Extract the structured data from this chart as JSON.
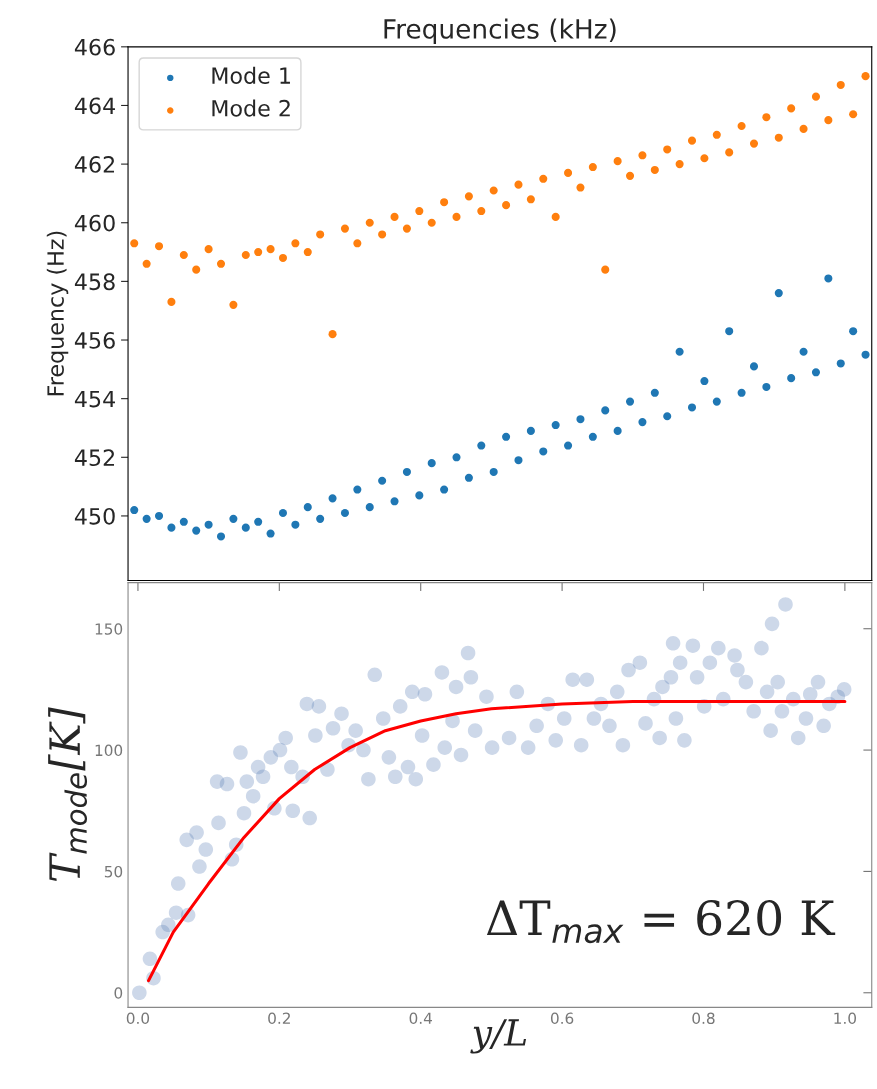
{
  "chart_data": [
    {
      "type": "scatter",
      "title": "Frequencies (kHz)",
      "ylabel": "Frequency (Hz)",
      "categories": [
        null,
        null,
        null,
        null,
        null,
        null,
        null,
        null,
        null,
        null,
        null,
        null,
        null,
        null,
        null,
        null,
        null,
        null,
        null,
        null,
        null,
        null,
        null,
        null,
        null,
        null,
        null,
        null,
        null,
        null,
        null,
        null,
        null,
        null,
        null,
        null,
        null,
        null,
        null,
        null,
        null,
        null,
        null,
        null,
        null,
        null,
        null,
        null,
        null,
        null,
        null,
        null,
        null,
        null,
        null,
        null,
        null,
        null,
        null,
        null
      ],
      "series": [
        {
          "name": "Mode 1",
          "color": "#1f77b4",
          "values": [
            450.2,
            449.9,
            450.0,
            449.6,
            449.8,
            449.5,
            449.7,
            449.3,
            449.9,
            449.6,
            449.8,
            449.4,
            450.1,
            449.7,
            450.3,
            449.9,
            450.6,
            450.1,
            450.9,
            450.3,
            451.2,
            450.5,
            451.5,
            450.7,
            451.8,
            450.9,
            452.0,
            451.3,
            452.4,
            451.5,
            452.7,
            451.9,
            452.9,
            452.2,
            453.1,
            452.4,
            453.3,
            452.7,
            453.6,
            452.9,
            453.9,
            453.2,
            454.2,
            453.4,
            455.6,
            453.7,
            454.6,
            453.9,
            456.3,
            454.2,
            455.1,
            454.4,
            457.6,
            454.7,
            455.6,
            454.9,
            458.1,
            455.2,
            456.3,
            455.5
          ]
        },
        {
          "name": "Mode 2",
          "color": "#ff7f0e",
          "values": [
            459.3,
            458.6,
            459.2,
            457.3,
            458.9,
            458.4,
            459.1,
            458.6,
            457.2,
            458.9,
            459.0,
            459.1,
            458.8,
            459.3,
            459.0,
            459.6,
            456.2,
            459.8,
            459.3,
            460.0,
            459.6,
            460.2,
            459.8,
            460.4,
            460.0,
            460.7,
            460.2,
            460.9,
            460.4,
            461.1,
            460.6,
            461.3,
            460.8,
            461.5,
            460.2,
            461.7,
            461.2,
            461.9,
            458.4,
            462.1,
            461.6,
            462.3,
            461.8,
            462.5,
            462.0,
            462.8,
            462.2,
            463.0,
            462.4,
            463.3,
            462.7,
            463.6,
            462.9,
            463.9,
            463.2,
            464.3,
            463.5,
            464.7,
            463.7,
            465.0
          ]
        }
      ],
      "ylim": [
        447.8,
        466
      ],
      "yticks": [
        450,
        452,
        454,
        456,
        458,
        460,
        462,
        464,
        466
      ],
      "tick_labels": "y",
      "marker": "circle",
      "legend": "top left",
      "grid": false
    },
    {
      "type": "scatter",
      "xlabel": "y/L",
      "ylabel": "T$_{mode}$[K]",
      "annotations": [
        "ΔT$_{max}$ = 620 K"
      ],
      "series": [
        {
          "color": "#5a7fb5",
          "x": [
            0.002,
            0.017,
            0.022,
            0.035,
            0.043,
            0.057,
            0.054,
            0.071,
            0.069,
            0.083,
            0.087,
            0.096,
            0.112,
            0.114,
            0.126,
            0.133,
            0.139,
            0.145,
            0.15,
            0.154,
            0.163,
            0.17,
            0.177,
            0.188,
            0.193,
            0.201,
            0.209,
            0.217,
            0.219,
            0.233,
            0.239,
            0.243,
            0.251,
            0.256,
            0.268,
            0.276,
            0.288,
            0.298,
            0.308,
            0.319,
            0.326,
            0.335,
            0.347,
            0.355,
            0.364,
            0.371,
            0.382,
            0.393,
            0.402,
            0.388,
            0.406,
            0.418,
            0.43,
            0.434,
            0.445,
            0.45,
            0.457,
            0.467,
            0.471,
            0.477,
            0.493,
            0.501,
            0.525,
            0.536,
            0.552,
            0.564,
            0.58,
            0.591,
            0.603,
            0.615,
            0.627,
            0.635,
            0.645,
            0.655,
            0.667,
            0.678,
            0.686,
            0.694,
            0.71,
            0.718,
            0.73,
            0.738,
            0.742,
            0.754,
            0.757,
            0.761,
            0.767,
            0.773,
            0.785,
            0.791,
            0.801,
            0.809,
            0.821,
            0.828,
            0.844,
            0.848,
            0.86,
            0.871,
            0.882,
            0.89,
            0.895,
            0.897,
            0.905,
            0.911,
            0.916,
            0.927,
            0.934,
            0.945,
            0.951,
            0.962,
            0.97,
            0.978,
            0.99,
            0.999
          ],
          "values": [
            0,
            14,
            6,
            25,
            28,
            45,
            33,
            32,
            63,
            66,
            52,
            59,
            87,
            70,
            86,
            55,
            61,
            99,
            74,
            87,
            81,
            93,
            89,
            97,
            76,
            100,
            105,
            93,
            75,
            89,
            119,
            72,
            106,
            118,
            92,
            109,
            115,
            102,
            108,
            100,
            88,
            131,
            113,
            97,
            89,
            118,
            93,
            88,
            106,
            124,
            123,
            94,
            132,
            101,
            112,
            126,
            98,
            140,
            130,
            108,
            122,
            101,
            105,
            124,
            101,
            110,
            119,
            104,
            113,
            129,
            102,
            129,
            113,
            119,
            110,
            124,
            102,
            133,
            136,
            111,
            121,
            105,
            126,
            130,
            144,
            113,
            136,
            104,
            143,
            130,
            118,
            136,
            142,
            121,
            139,
            133,
            128,
            116,
            142,
            124,
            108,
            152,
            128,
            116,
            160,
            121,
            105,
            113,
            123,
            128,
            110,
            119,
            122,
            125
          ]
        },
        {
          "type": "line",
          "marker": "none",
          "color": "#ff0000",
          "x": [
            0.015,
            0.05,
            0.1,
            0.15,
            0.2,
            0.25,
            0.3,
            0.35,
            0.4,
            0.45,
            0.5,
            0.6,
            0.7,
            0.8,
            0.9,
            1.0
          ],
          "values": [
            5,
            25,
            45,
            64,
            80,
            92,
            101,
            108,
            112,
            115,
            117,
            119,
            120,
            120,
            120,
            120
          ]
        }
      ],
      "xlim": [
        -0.014,
        1.038
      ],
      "ylim": [
        -6,
        169
      ],
      "xticks": [
        {
          "value": 0,
          "label": "0.0"
        },
        0.2,
        0.4,
        0.6,
        0.8,
        {
          "value": 1,
          "label": "1.0"
        }
      ],
      "yticks": [
        0,
        50,
        100,
        150
      ],
      "marker": "circle",
      "grid": false
    }
  ]
}
